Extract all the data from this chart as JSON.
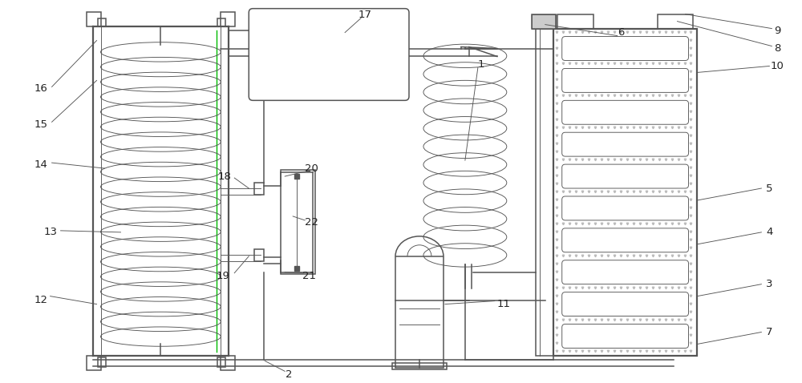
{
  "bg_color": "#ffffff",
  "line_color": "#555555",
  "lw": 1.1,
  "tlw": 0.65,
  "thk": 1.6,
  "fig_width": 10.0,
  "fig_height": 4.78,
  "dot_color": "#aaaaaa",
  "green_line": "#00aa00"
}
